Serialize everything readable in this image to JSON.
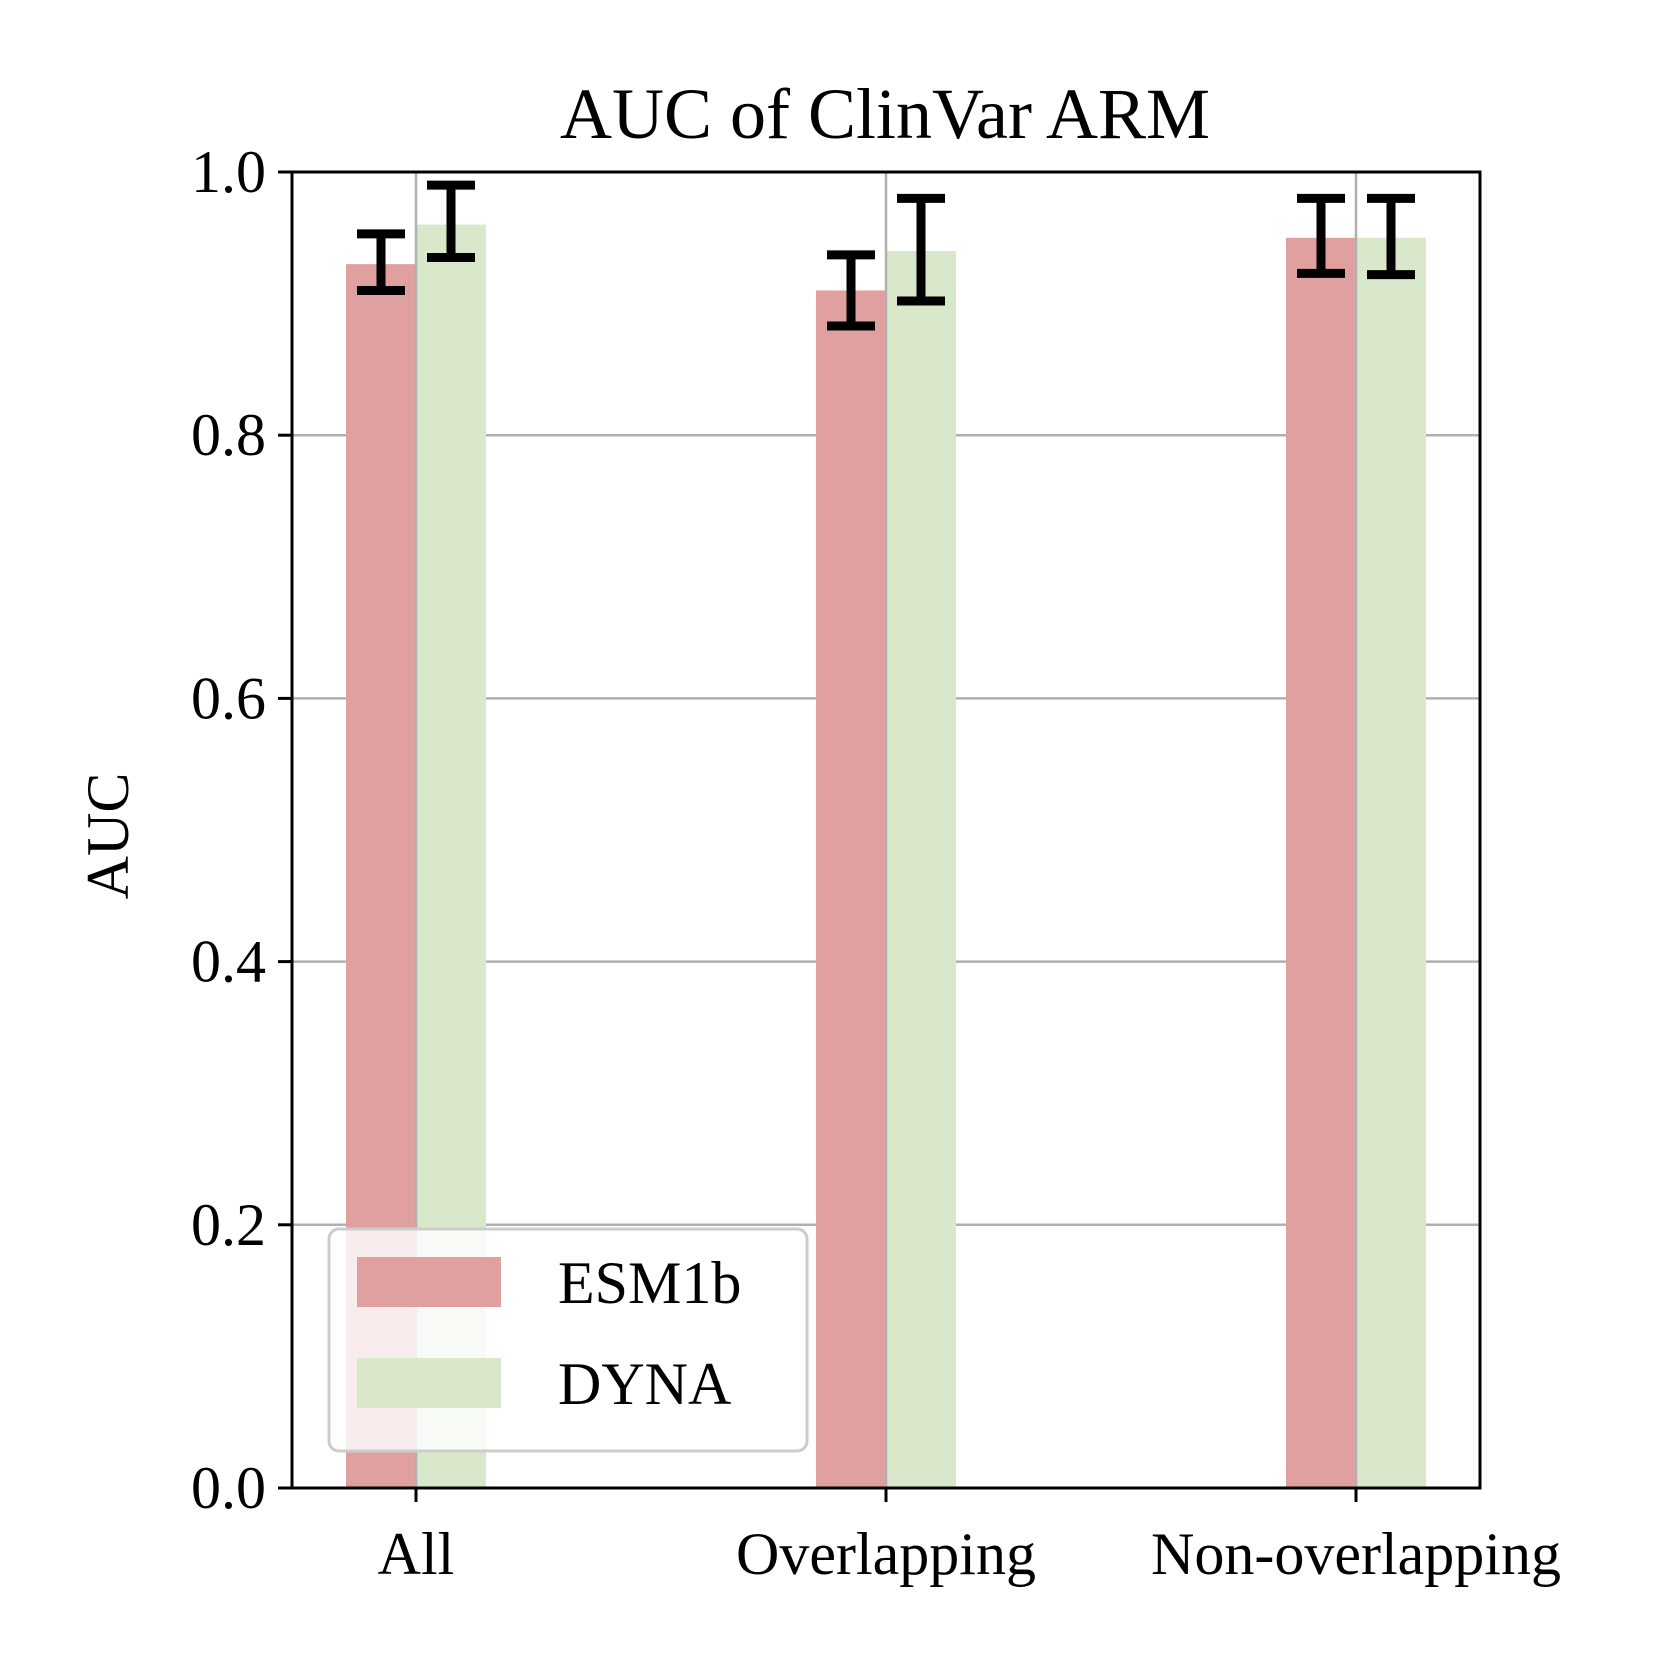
{
  "chart_data": {
    "type": "bar",
    "title": "AUC of ClinVar ARM",
    "xlabel": "",
    "ylabel": "AUC",
    "ylim": [
      0.0,
      1.0
    ],
    "yticks": [
      "0.0",
      "0.2",
      "0.4",
      "0.6",
      "0.8",
      "1.0"
    ],
    "categories": [
      "All",
      "Overlapping",
      "Non-overlapping"
    ],
    "grid": true,
    "legend_position": "lower-left",
    "series": [
      {
        "name": "ESM1b",
        "color": "#e0a0a0",
        "values": [
          0.93,
          0.91,
          0.95
        ],
        "err_low": [
          0.91,
          0.883,
          0.923
        ],
        "err_high": [
          0.953,
          0.937,
          0.98
        ]
      },
      {
        "name": "DYNA",
        "color": "#d9e7cb",
        "values": [
          0.96,
          0.94,
          0.95
        ],
        "err_low": [
          0.935,
          0.902,
          0.922
        ],
        "err_high": [
          0.99,
          0.98,
          0.98
        ]
      }
    ]
  }
}
